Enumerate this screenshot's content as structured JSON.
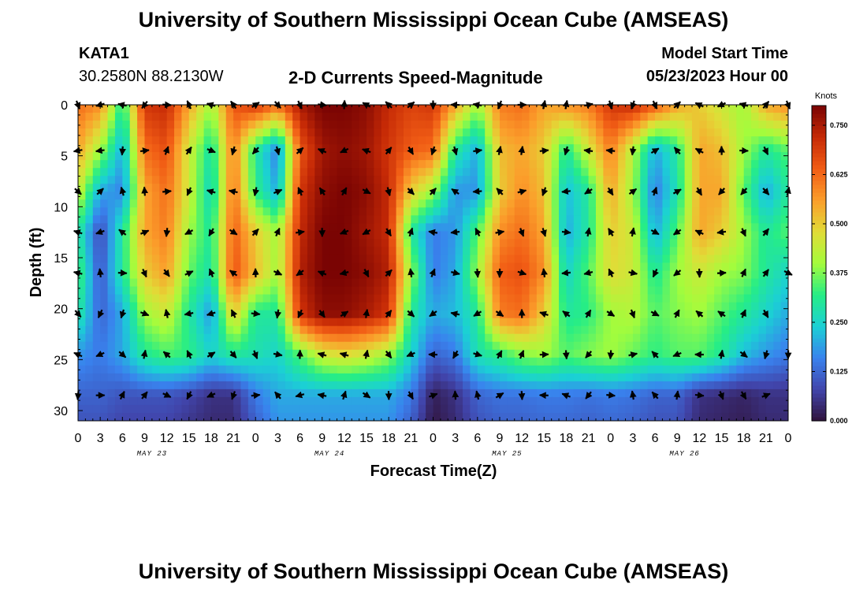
{
  "header": {
    "title_top": "University of Southern Mississippi Ocean Cube (AMSEAS)",
    "title_bottom": "University of Southern Mississippi Ocean Cube (AMSEAS)",
    "station": "KATA1",
    "coords": "30.2580N  88.2130W",
    "subtitle": "2-D Currents Speed-Magnitude",
    "start_label": "Model Start Time",
    "start_value": "05/23/2023 Hour 00"
  },
  "chart_data": {
    "type": "heatmap",
    "title": "2-D Currents Speed-Magnitude",
    "xlabel": "Forecast Time(Z)",
    "ylabel": "Depth (ft)",
    "colorbar_label": "Knots",
    "colorbar_ticks": [
      "0.000",
      "0.125",
      "0.250",
      "0.375",
      "0.500",
      "0.625",
      "0.750"
    ],
    "colorbar_range": [
      0,
      0.8
    ],
    "x_ticks": [
      "0",
      "3",
      "6",
      "9",
      "12",
      "15",
      "18",
      "21",
      "0",
      "3",
      "6",
      "9",
      "12",
      "15",
      "18",
      "21",
      "0",
      "3",
      "6",
      "9",
      "12",
      "15",
      "18",
      "21",
      "0",
      "3",
      "6",
      "9",
      "12",
      "15",
      "18",
      "21",
      "0"
    ],
    "x_range_hours": [
      0,
      96
    ],
    "day_labels": [
      {
        "label": "MAY 23",
        "hour": 10
      },
      {
        "label": "MAY 24",
        "hour": 34
      },
      {
        "label": "MAY 25",
        "hour": 58
      },
      {
        "label": "MAY 26",
        "hour": 82
      }
    ],
    "y_ticks": [
      "0",
      "5",
      "10",
      "15",
      "20",
      "25",
      "30"
    ],
    "y_range_ft": [
      0,
      31
    ],
    "arrow_depths_ft": [
      0,
      4.5,
      8.5,
      12.5,
      16.5,
      20.5,
      24.5,
      28.5
    ],
    "speed_grid": {
      "hours": [
        0,
        3,
        6,
        9,
        12,
        15,
        18,
        21,
        24,
        27,
        30,
        33,
        36,
        39,
        42,
        45,
        48,
        51,
        54,
        57,
        60,
        63,
        66,
        69,
        72,
        75,
        78,
        81,
        84,
        87,
        90,
        93,
        96
      ],
      "depths_ft": [
        0,
        4.5,
        8.5,
        12.5,
        16.5,
        20.5,
        24.5,
        28.5,
        31
      ],
      "knots": [
        [
          0.62,
          0.58,
          0.3,
          0.7,
          0.72,
          0.55,
          0.4,
          0.65,
          0.7,
          0.62,
          0.75,
          0.8,
          0.8,
          0.78,
          0.72,
          0.68,
          0.7,
          0.55,
          0.4,
          0.6,
          0.62,
          0.55,
          0.58,
          0.6,
          0.7,
          0.72,
          0.65,
          0.55,
          0.5,
          0.45,
          0.4,
          0.55,
          0.58
        ],
        [
          0.55,
          0.4,
          0.2,
          0.62,
          0.66,
          0.45,
          0.28,
          0.6,
          0.3,
          0.15,
          0.65,
          0.76,
          0.78,
          0.76,
          0.7,
          0.64,
          0.62,
          0.3,
          0.2,
          0.52,
          0.55,
          0.5,
          0.3,
          0.45,
          0.6,
          0.42,
          0.2,
          0.3,
          0.55,
          0.52,
          0.4,
          0.3,
          0.35
        ],
        [
          0.45,
          0.2,
          0.16,
          0.55,
          0.62,
          0.45,
          0.25,
          0.62,
          0.32,
          0.2,
          0.7,
          0.78,
          0.8,
          0.78,
          0.72,
          0.5,
          0.4,
          0.18,
          0.18,
          0.5,
          0.58,
          0.52,
          0.22,
          0.3,
          0.55,
          0.4,
          0.15,
          0.28,
          0.55,
          0.55,
          0.35,
          0.2,
          0.3
        ],
        [
          0.3,
          0.08,
          0.3,
          0.55,
          0.6,
          0.4,
          0.3,
          0.64,
          0.5,
          0.4,
          0.72,
          0.8,
          0.8,
          0.76,
          0.72,
          0.3,
          0.15,
          0.18,
          0.35,
          0.58,
          0.62,
          0.55,
          0.2,
          0.3,
          0.5,
          0.45,
          0.2,
          0.35,
          0.55,
          0.5,
          0.4,
          0.3,
          0.35
        ],
        [
          0.35,
          0.1,
          0.3,
          0.5,
          0.56,
          0.36,
          0.28,
          0.66,
          0.52,
          0.4,
          0.74,
          0.8,
          0.8,
          0.78,
          0.74,
          0.4,
          0.15,
          0.2,
          0.4,
          0.64,
          0.66,
          0.58,
          0.25,
          0.35,
          0.48,
          0.45,
          0.3,
          0.4,
          0.45,
          0.4,
          0.38,
          0.3,
          0.25
        ],
        [
          0.3,
          0.12,
          0.2,
          0.4,
          0.45,
          0.3,
          0.18,
          0.5,
          0.3,
          0.3,
          0.7,
          0.78,
          0.78,
          0.75,
          0.7,
          0.3,
          0.2,
          0.22,
          0.3,
          0.6,
          0.62,
          0.5,
          0.3,
          0.32,
          0.4,
          0.42,
          0.35,
          0.38,
          0.4,
          0.35,
          0.3,
          0.25,
          0.2
        ],
        [
          0.18,
          0.15,
          0.2,
          0.3,
          0.34,
          0.32,
          0.25,
          0.3,
          0.28,
          0.25,
          0.35,
          0.45,
          0.48,
          0.45,
          0.4,
          0.25,
          0.12,
          0.15,
          0.28,
          0.32,
          0.38,
          0.4,
          0.35,
          0.38,
          0.4,
          0.36,
          0.32,
          0.35,
          0.35,
          0.3,
          0.22,
          0.18,
          0.15
        ],
        [
          0.12,
          0.12,
          0.1,
          0.1,
          0.1,
          0.08,
          0.05,
          0.05,
          0.15,
          0.2,
          0.2,
          0.2,
          0.2,
          0.2,
          0.2,
          0.15,
          0.02,
          0.05,
          0.12,
          0.14,
          0.14,
          0.15,
          0.15,
          0.14,
          0.15,
          0.14,
          0.12,
          0.12,
          0.05,
          0.04,
          0.03,
          0.05,
          0.05
        ],
        [
          0.1,
          0.1,
          0.08,
          0.08,
          0.08,
          0.06,
          0.04,
          0.04,
          0.12,
          0.18,
          0.18,
          0.18,
          0.18,
          0.18,
          0.18,
          0.12,
          0.01,
          0.04,
          0.1,
          0.12,
          0.12,
          0.13,
          0.13,
          0.12,
          0.13,
          0.12,
          0.1,
          0.1,
          0.04,
          0.03,
          0.02,
          0.04,
          0.04
        ]
      ]
    }
  }
}
